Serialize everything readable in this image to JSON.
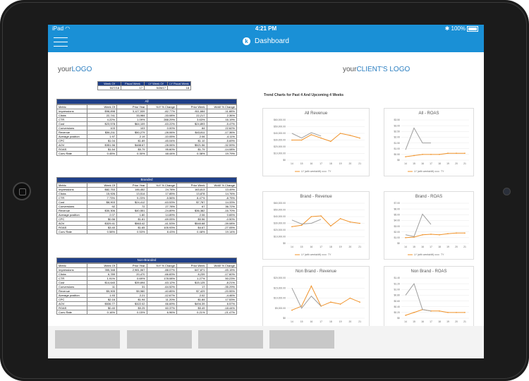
{
  "status_bar": {
    "device": "iPad",
    "time": "4:21 PM",
    "battery": "100%"
  },
  "nav": {
    "title": "Dashboard"
  },
  "logos": {
    "left_prefix": "your",
    "left_main": "LOGO",
    "right_prefix": "your",
    "right_main": "CLIENT'S LOGO"
  },
  "week_table": {
    "headers": [
      "Week Of",
      "Fiscal Week",
      "LY Week Of",
      "LY Fiscal Week"
    ],
    "values": [
      "5/27/18",
      "17",
      "5/28/17",
      "18"
    ]
  },
  "blocks": [
    {
      "title": "All",
      "headers": [
        "Metric",
        "Week Of",
        "Prior Year",
        "YoY % Change",
        "Prior Week",
        "WoW % Change"
      ],
      "rows": [
        [
          "Impressions",
          "$98,898",
          "3,127,539",
          "-82.77%",
          "811,684",
          "-11.88%"
        ],
        [
          "Clicks",
          "22,741",
          "33,984",
          "-33.08%",
          "22,217",
          "2.36%"
        ],
        [
          "CTR",
          "4.22%",
          "1.09%",
          "288.29%",
          "3.63%",
          "16.19%"
        ],
        [
          "Cost",
          "$23,578",
          "$64,109",
          "-63.22%",
          "$24,893",
          "-5.47%"
        ],
        [
          "Conversions",
          "103",
          "103",
          "0.00%",
          "84",
          "22.62%"
        ],
        [
          "Revenue",
          "$36,211",
          "$50,279",
          "-28.06%",
          "$43,811",
          "-17.36%"
        ],
        [
          "Average position",
          "1.97",
          "2.19",
          "-10.05%",
          "2.06",
          "-4.11%"
        ],
        [
          "CPC",
          "$1.04",
          "$1.89",
          "-45.04%",
          "$1.10",
          "-5.69%"
        ],
        [
          "AOV",
          "$351.56",
          "$488.67",
          "-28.06%",
          "$521.56",
          "-32.59%"
        ],
        [
          "ROAS",
          "$1.54",
          "$0.79",
          "95.60%",
          "$1.79",
          "-14.08%"
        ],
        [
          "Conv Rate",
          "0.45%",
          "0.30%",
          "48.44%",
          "0.38%",
          "19.79%"
        ]
      ]
    },
    {
      "title": "Branded",
      "headers": [
        "Metric",
        "Week Of",
        "Prior Year",
        "YoY % Change",
        "Prior Week",
        "WoW % Change"
      ],
      "rows": [
        [
          "Impressions",
          "$82,753",
          "146,452",
          "24.78%",
          "163,813",
          "13.49%"
        ],
        [
          "Clicks",
          "15,926",
          "13,514",
          "17.85%",
          "13,878",
          "14.76%"
        ],
        [
          "CTR",
          "7.73%",
          "9.23%",
          "-5.56%",
          "8.47%",
          "-8.75%"
        ],
        [
          "Cost",
          "$8,903",
          "$24,412",
          "-63.53%",
          "$7,787",
          "14.33%"
        ],
        [
          "Conversions",
          "92",
          "72",
          "27.78%",
          "67",
          "36.72%"
        ],
        [
          "Revenue",
          "$30,306",
          "$40,551",
          "-24.89%",
          "$36,382",
          "-16.70%"
        ],
        [
          "Average position",
          "2.07",
          "1.80",
          "14.89%",
          "2.06",
          "0.65%"
        ],
        [
          "CPC",
          "$0.56",
          "$1.81",
          "-69.05%",
          "$0.56",
          "-0.50%"
        ],
        [
          "AOV",
          "$329.41",
          "$563.42",
          "-41.53%",
          "$540.68",
          "-39.08%"
        ],
        [
          "ROAS",
          "$3.40",
          "$1.65",
          "105.93%",
          "$4.67",
          "-27.05%"
        ],
        [
          "Conv Rate",
          "0.58%",
          "0.53%",
          "8.43%",
          "0.48%",
          "19.14%"
        ]
      ]
    },
    {
      "title": "Non-Branded",
      "headers": [
        "Metric",
        "Week Of",
        "Prior Year",
        "YoY % Change",
        "Prior Week",
        "WoW % Change"
      ],
      "rows": [
        [
          "Impressions",
          "355,348",
          "2,981,067",
          "-88.07%",
          "647,871",
          "-45.15%"
        ],
        [
          "Clicks",
          "6,789",
          "20,470",
          "-66.83%",
          "8,239",
          "-17.60%"
        ],
        [
          "CTR",
          "1.91%",
          "0.69%",
          "178.08%",
          "1.27%",
          "50.23%"
        ],
        [
          "Cost",
          "$14,640",
          "$39,694",
          "-63.12%",
          "$15,125",
          "-8.21%"
        ],
        [
          "Conversions",
          "11",
          "31",
          "-64.52%",
          "17",
          "-35.29%"
        ],
        [
          "Revenue",
          "$5,905",
          "$9,980",
          "-40.85%",
          "$7,429",
          "-20.55%"
        ],
        [
          "Average position",
          "1.93",
          "2.21",
          "-12.67%",
          "2.02",
          "-4.46%"
        ],
        [
          "CPC",
          "$2.16",
          "$1.94",
          "11.20%",
          "$1.84",
          "17.53%"
        ],
        [
          "AOV",
          "$536.77",
          "$322.02",
          "66.69%",
          "$494.39",
          "8.57%"
        ],
        [
          "ROAS",
          "$0.40",
          "$0.25",
          "60.37%",
          "$0.49",
          "-18.44%"
        ],
        [
          "Conv Rate",
          "0.16%",
          "0.15%",
          "6.96%",
          "0.21%",
          "-21.47%"
        ]
      ]
    }
  ],
  "trend_title": "Trend Charts for Past 4 And Upcoming 4 Weeks",
  "chart_data": [
    {
      "type": "line",
      "title": "All Revenue",
      "x": [
        14,
        15,
        16,
        17,
        18,
        19,
        20,
        21
      ],
      "yticks": [
        "$0",
        "$10,000.00",
        "$20,000.00",
        "$30,000.00",
        "$40,000.00",
        "$50,000.00",
        "$60,000.00"
      ],
      "ylim": [
        0,
        60000
      ],
      "series": [
        {
          "name": "LY (with weekshift)",
          "color": "#f0932b",
          "values": [
            30000,
            30000,
            38000,
            33000,
            28000,
            40000,
            37000,
            33000
          ]
        },
        {
          "name": "TY",
          "color": "#9e9e9e",
          "values": [
            40000,
            33000,
            41000,
            36000,
            null,
            null,
            null,
            null
          ]
        }
      ]
    },
    {
      "type": "line",
      "title": "All - ROAS",
      "x": [
        14,
        15,
        16,
        17,
        18,
        19,
        20,
        21
      ],
      "yticks": [
        "$0",
        "$0.50",
        "$1.00",
        "$1.50",
        "$2.00",
        "$2.50",
        "$3.00",
        "$3.50"
      ],
      "ylim": [
        0,
        3.5
      ],
      "series": [
        {
          "name": "LY (with weekshift)",
          "color": "#f0932b",
          "values": [
            0.3,
            0.4,
            0.5,
            0.5,
            0.5,
            0.6,
            0.6,
            0.6
          ]
        },
        {
          "name": "TY",
          "color": "#9e9e9e",
          "values": [
            0.9,
            2.8,
            1.5,
            1.5,
            null,
            null,
            null,
            null
          ]
        }
      ]
    },
    {
      "type": "line",
      "title": "Brand - Revenue",
      "x": [
        14,
        15,
        16,
        17,
        18,
        19,
        20,
        21
      ],
      "yticks": [
        "$0",
        "$10,000.00",
        "$20,000.00",
        "$30,000.00",
        "$40,000.00",
        "$50,000.00",
        "$60,000.00"
      ],
      "ylim": [
        0,
        60000
      ],
      "series": [
        {
          "name": "LY (with weekshift)",
          "color": "#f0932b",
          "values": [
            25000,
            27000,
            40000,
            41000,
            26000,
            37000,
            32000,
            30000
          ]
        },
        {
          "name": "TY",
          "color": "#9e9e9e",
          "values": [
            35000,
            29000,
            30000,
            36000,
            null,
            null,
            null,
            null
          ]
        }
      ]
    },
    {
      "type": "line",
      "title": "Brand - ROAS",
      "x": [
        14,
        15,
        16,
        17,
        18,
        19,
        20,
        21
      ],
      "yticks": [
        "$0",
        "$1.00",
        "$2.00",
        "$3.00",
        "$4.00",
        "$5.00",
        "$6.00",
        "$7.00"
      ],
      "ylim": [
        0,
        7
      ],
      "series": [
        {
          "name": "LY (with weekshift)",
          "color": "#f0932b",
          "values": [
            1.0,
            1.1,
            1.5,
            1.6,
            1.5,
            1.7,
            1.8,
            1.8
          ]
        },
        {
          "name": "TY",
          "color": "#9e9e9e",
          "values": [
            1.5,
            1.2,
            5.1,
            3.3,
            null,
            null,
            null,
            null
          ]
        }
      ]
    },
    {
      "type": "line",
      "title": "Non Brand - Revenue",
      "x": [
        14,
        15,
        16,
        17,
        18,
        19,
        20,
        21
      ],
      "yticks": [
        "$0",
        "$5,000.00",
        "$10,000.00",
        "$15,000.00",
        "$20,000.00"
      ],
      "ylim": [
        0,
        20000
      ],
      "series": [
        {
          "name": "LY (with weekshift)",
          "color": "#f0932b",
          "values": [
            4000,
            6000,
            16000,
            6000,
            8000,
            7000,
            10000,
            8000
          ]
        },
        {
          "name": "TY",
          "color": "#9e9e9e",
          "values": [
            15000,
            5000,
            11000,
            6000,
            null,
            null,
            null,
            null
          ]
        }
      ]
    },
    {
      "type": "line",
      "title": "Non Brand - ROAS",
      "x": [
        14,
        15,
        16,
        17,
        18,
        19,
        20,
        21
      ],
      "yticks": [
        "$0",
        "$0.20",
        "$0.40",
        "$0.60",
        "$0.80",
        "$1.00",
        "$1.20",
        "$1.40"
      ],
      "ylim": [
        0,
        1.4
      ],
      "series": [
        {
          "name": "LY (with weekshift)",
          "color": "#f0932b",
          "values": [
            0.1,
            0.2,
            0.3,
            0.25,
            0.25,
            0.2,
            0.2,
            0.2
          ]
        },
        {
          "name": "TY",
          "color": "#9e9e9e",
          "values": [
            0.8,
            1.2,
            0.3,
            0.25,
            null,
            null,
            null,
            null
          ]
        }
      ]
    }
  ]
}
